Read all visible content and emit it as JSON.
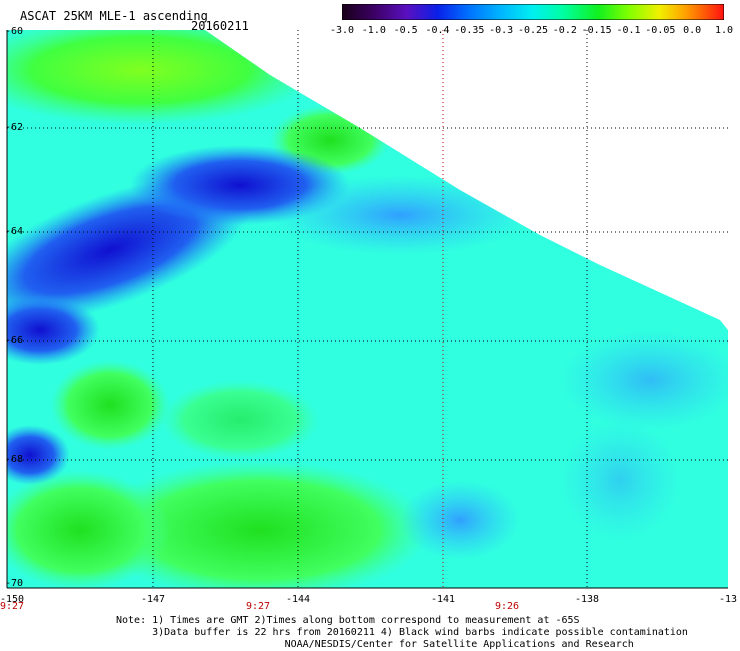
{
  "header": {
    "title": "ASCAT 25KM MLE-1 ascending",
    "date": "20160211"
  },
  "colorbar": {
    "labels": [
      "-3.0",
      "-1.0",
      "-0.5",
      "-0.4",
      "-0.35",
      "-0.3",
      "-0.25",
      "-0.2",
      "-0.15",
      "-0.1",
      "-0.05",
      "0.0",
      "1.0"
    ],
    "colors": [
      "#1a0020",
      "#3c0070",
      "#5a10b0",
      "#1020e0",
      "#0050ff",
      "#00a0ff",
      "#00e0ff",
      "#00ffb0",
      "#00f040",
      "#60ff00",
      "#e0ff00",
      "#ffa000",
      "#ff2000"
    ]
  },
  "map": {
    "lon_ticks": [
      "-150",
      "-147",
      "-144",
      "-141",
      "-138",
      "-13"
    ],
    "lat_ticks": [
      "-60",
      "-62",
      "-64",
      "-66",
      "-68",
      "-70"
    ],
    "time_labels": [
      "9:27",
      "9:27",
      "9:26"
    ],
    "grid_color": "#000000",
    "time_grid_color": "#c00000"
  },
  "footer": {
    "note_line1": "Note: 1) Times are GMT 2)Times along bottom correspond to measurement at -65S",
    "note_line2": "      3)Data buffer is 22 hrs from 20160211 4) Black wind barbs indicate possible contamination",
    "note_line3": "                            NOAA/NESDIS/Center for Satellite Applications and Research"
  }
}
